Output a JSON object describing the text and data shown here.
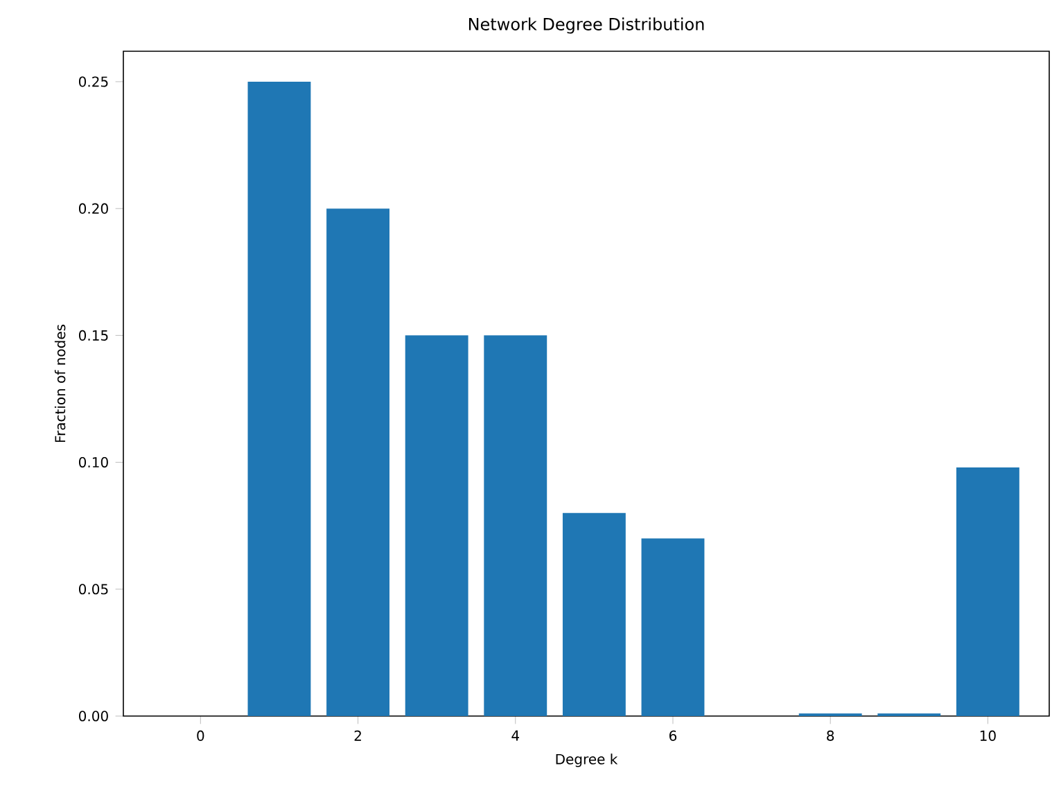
{
  "chart_data": {
    "type": "bar",
    "title": "Network Degree Distribution",
    "xlabel": "Degree k",
    "ylabel": "Fraction of nodes",
    "x": [
      1,
      2,
      3,
      4,
      5,
      6,
      8,
      9,
      10
    ],
    "values": [
      0.25,
      0.2,
      0.15,
      0.15,
      0.08,
      0.07,
      0.001,
      0.001,
      0.098
    ],
    "color": "#1f77b4",
    "xlim": [
      -0.98,
      10.78
    ],
    "ylim": [
      0,
      0.262
    ],
    "xticks": [
      0,
      2,
      4,
      6,
      8,
      10
    ],
    "yticks": [
      {
        "value": 0,
        "label": "0.00"
      },
      {
        "value": 0.05,
        "label": "0.05"
      },
      {
        "value": 0.1,
        "label": "0.10"
      },
      {
        "value": 0.15,
        "label": "0.15"
      },
      {
        "value": 0.2,
        "label": "0.20"
      },
      {
        "value": 0.25,
        "label": "0.25"
      }
    ],
    "grid": false
  }
}
